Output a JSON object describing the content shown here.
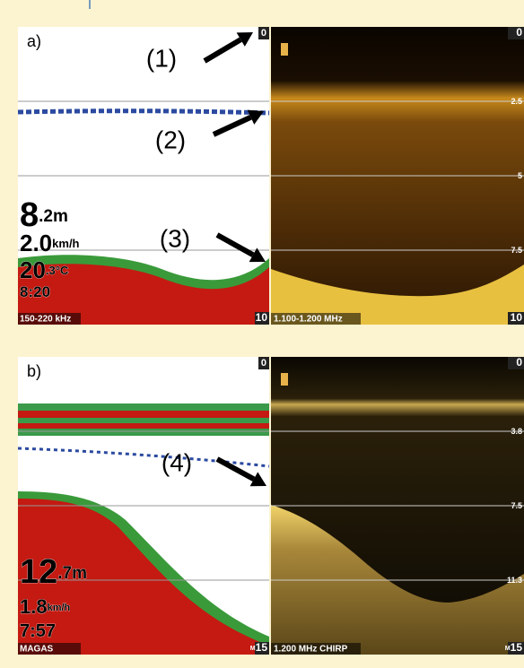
{
  "panels": [
    {
      "label": "a)",
      "callouts": [
        "(1)",
        "(2)",
        "(3)"
      ],
      "left": {
        "scale_top": "0",
        "scale_bottom": "10",
        "footer": "150-220 kHz",
        "readout": [
          {
            "big": "8",
            "small": ".2m"
          },
          {
            "big": "2.0",
            "small": "km/h"
          },
          {
            "big": "20",
            "small": ".3°C"
          },
          {
            "big": "8:20"
          }
        ]
      },
      "right": {
        "scale": [
          "0",
          "2.5",
          "5",
          "7.5",
          "10"
        ],
        "footer": "1.100-1.200 MHz"
      }
    },
    {
      "label": "b)",
      "callouts": [
        "(4)"
      ],
      "left": {
        "scale_top": "0",
        "scale_bottom": "15",
        "unit": "M",
        "footer": "MAGAS",
        "readout": [
          {
            "big": "12",
            "small": ".7m"
          },
          {
            "big": "1.8",
            "small": "km/h"
          },
          {
            "big": "7:57"
          }
        ]
      },
      "right": {
        "scale": [
          "0",
          "3.8",
          "7.5",
          "11.3",
          "15"
        ],
        "unit": "M",
        "footer": "1.200 MHz CHIRP"
      }
    }
  ]
}
